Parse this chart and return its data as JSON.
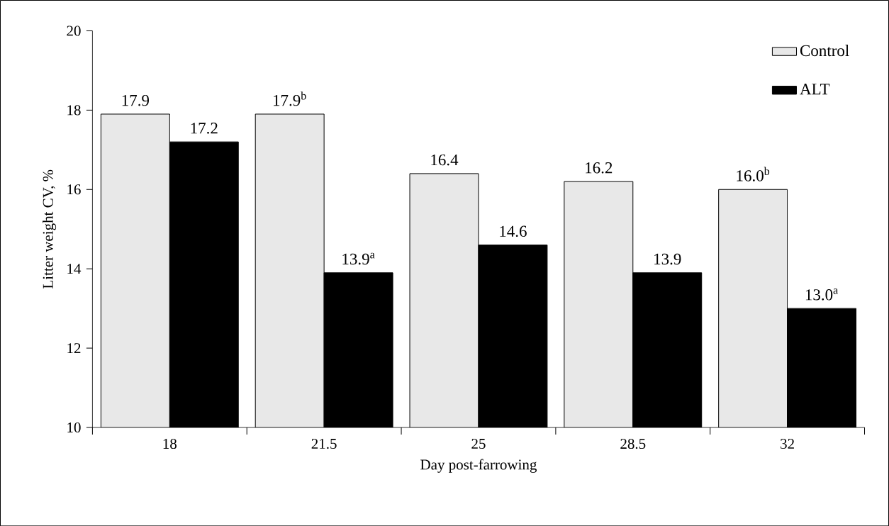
{
  "chart_data": {
    "type": "bar",
    "xlabel": "Day post-farrowing",
    "ylabel": "Litter weight CV, %",
    "categories": [
      "18",
      "21.5",
      "25",
      "28.5",
      "32"
    ],
    "series": [
      {
        "name": "Control",
        "color": "#e8e8e8",
        "values": [
          17.9,
          17.9,
          16.4,
          16.2,
          16.0
        ],
        "value_labels": [
          "17.9",
          "17.9$^{b}$",
          "16.4",
          "16.2",
          "16.0$^{b}$"
        ]
      },
      {
        "name": "ALT",
        "color": "#000000",
        "values": [
          17.2,
          13.9,
          14.6,
          13.9,
          13.0
        ],
        "value_labels": [
          "17.2",
          "13.9$^{a}$",
          "14.6",
          "13.9",
          "13.0$^{a}$"
        ]
      }
    ],
    "ylim": [
      10,
      20
    ],
    "yticks": [
      10,
      12,
      14,
      16,
      18,
      20
    ],
    "grid": false,
    "legend": "top right"
  }
}
